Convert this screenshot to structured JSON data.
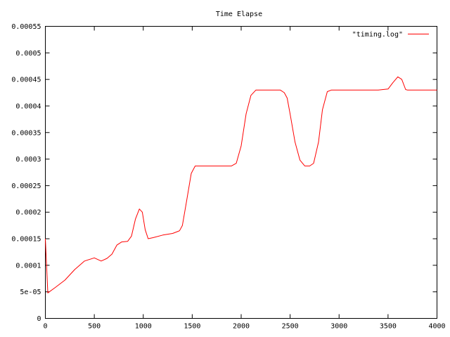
{
  "chart_data": {
    "type": "line",
    "title": "Time Elapse",
    "xlabel": "",
    "ylabel": "",
    "xlim": [
      0,
      4000
    ],
    "ylim": [
      0,
      0.00055
    ],
    "x_ticks": [
      0,
      500,
      1000,
      1500,
      2000,
      2500,
      3000,
      3500,
      4000
    ],
    "x_tick_labels": [
      "0",
      "500",
      "1000",
      "1500",
      "2000",
      "2500",
      "3000",
      "3500",
      "4000"
    ],
    "y_ticks": [
      0,
      5e-05,
      0.0001,
      0.00015,
      0.0002,
      0.00025,
      0.0003,
      0.00035,
      0.0004,
      0.00045,
      0.0005,
      0.00055
    ],
    "y_tick_labels": [
      "0",
      "5e-05",
      "0.0001",
      "0.00015",
      "0.0002",
      "0.00025",
      "0.0003",
      "0.00035",
      "0.0004",
      "0.00045",
      "0.0005",
      "0.00055"
    ],
    "grid": false,
    "legend_position": "top-right",
    "series": [
      {
        "name": "\"timing.log\"",
        "color": "#ff0000",
        "points": [
          [
            0,
            0.00015
          ],
          [
            25,
            4.8e-05
          ],
          [
            100,
            5.8e-05
          ],
          [
            200,
            7.2e-05
          ],
          [
            300,
            9.2e-05
          ],
          [
            400,
            0.000108
          ],
          [
            500,
            0.000114
          ],
          [
            570,
            0.000108
          ],
          [
            630,
            0.000113
          ],
          [
            680,
            0.000121
          ],
          [
            730,
            0.000138
          ],
          [
            780,
            0.000144
          ],
          [
            840,
            0.000145
          ],
          [
            880,
            0.000155
          ],
          [
            920,
            0.000187
          ],
          [
            960,
            0.000206
          ],
          [
            990,
            0.0002
          ],
          [
            1020,
            0.000167
          ],
          [
            1050,
            0.00015
          ],
          [
            1100,
            0.000152
          ],
          [
            1200,
            0.000157
          ],
          [
            1300,
            0.00016
          ],
          [
            1370,
            0.000165
          ],
          [
            1400,
            0.000175
          ],
          [
            1440,
            0.000218
          ],
          [
            1490,
            0.000273
          ],
          [
            1530,
            0.000287
          ],
          [
            1600,
            0.000287
          ],
          [
            1700,
            0.000287
          ],
          [
            1800,
            0.000287
          ],
          [
            1900,
            0.000287
          ],
          [
            1950,
            0.000292
          ],
          [
            2000,
            0.000325
          ],
          [
            2050,
            0.000385
          ],
          [
            2100,
            0.00042
          ],
          [
            2150,
            0.00043
          ],
          [
            2200,
            0.00043
          ],
          [
            2300,
            0.00043
          ],
          [
            2400,
            0.00043
          ],
          [
            2440,
            0.000425
          ],
          [
            2470,
            0.000415
          ],
          [
            2500,
            0.000385
          ],
          [
            2550,
            0.000332
          ],
          [
            2600,
            0.000298
          ],
          [
            2650,
            0.000287
          ],
          [
            2700,
            0.000287
          ],
          [
            2740,
            0.000292
          ],
          [
            2790,
            0.000332
          ],
          [
            2830,
            0.000393
          ],
          [
            2880,
            0.000427
          ],
          [
            2920,
            0.00043
          ],
          [
            3000,
            0.00043
          ],
          [
            3200,
            0.00043
          ],
          [
            3400,
            0.00043
          ],
          [
            3500,
            0.000432
          ],
          [
            3550,
            0.000444
          ],
          [
            3600,
            0.000455
          ],
          [
            3640,
            0.00045
          ],
          [
            3680,
            0.000431
          ],
          [
            3700,
            0.00043
          ],
          [
            3800,
            0.00043
          ],
          [
            4000,
            0.00043
          ]
        ]
      }
    ]
  }
}
